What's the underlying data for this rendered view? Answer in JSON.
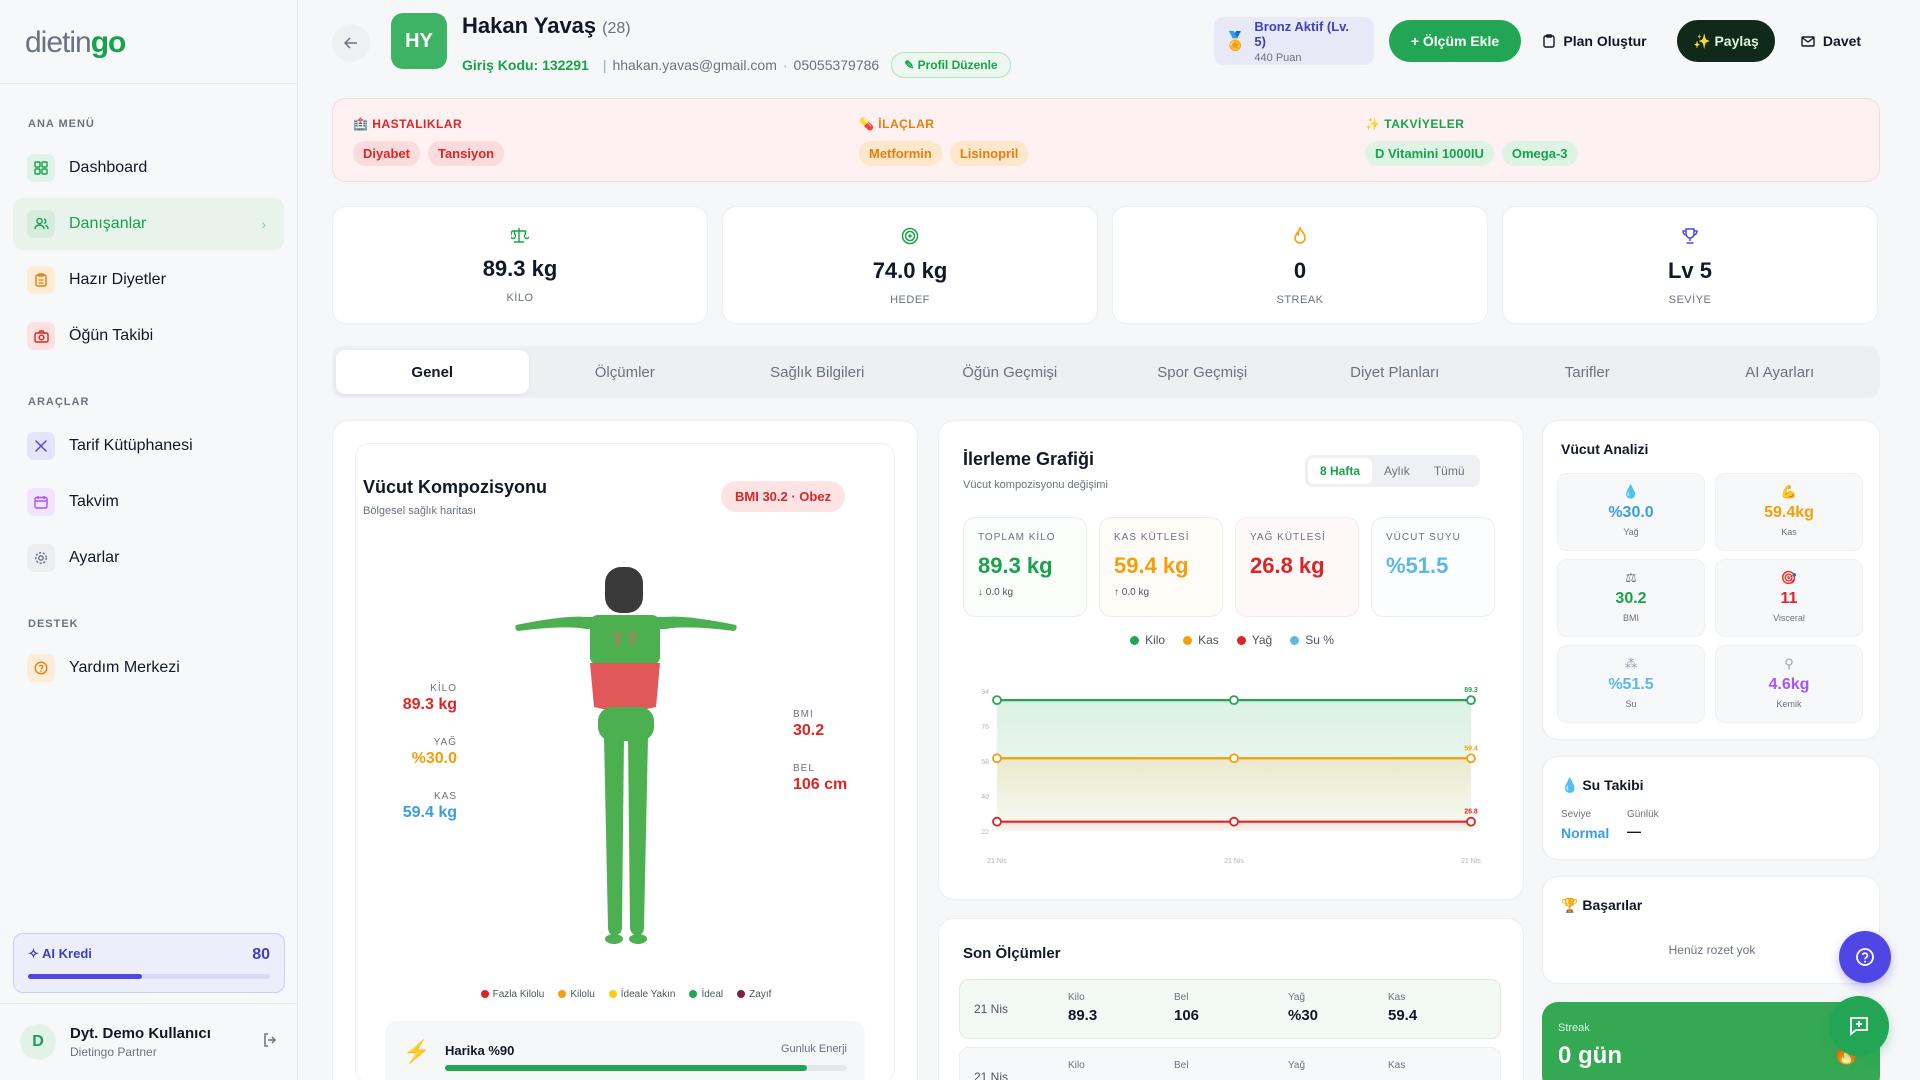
{
  "brand": {
    "part1": "dietin",
    "part2": "go"
  },
  "sidebar": {
    "sections": [
      {
        "title": "ANA MENÜ"
      },
      {
        "title": "ARAÇLAR"
      },
      {
        "title": "DESTEK"
      }
    ],
    "items": [
      {
        "label": "Dashboard",
        "icon": "grid-icon",
        "color": "#16a34a"
      },
      {
        "label": "Danışanlar",
        "icon": "users-icon",
        "color": "#16a34a"
      },
      {
        "label": "Hazır Diyetler",
        "icon": "clipboard-icon",
        "color": "#ea7c0c"
      },
      {
        "label": "Öğün Takibi",
        "icon": "camera-icon",
        "color": "#dc2626"
      },
      {
        "label": "Tarif Kütüphanesi",
        "icon": "utensils-icon",
        "color": "#4f46e5"
      },
      {
        "label": "Takvim",
        "icon": "calendar-icon",
        "color": "#a855f7"
      },
      {
        "label": "Ayarlar",
        "icon": "gear-icon",
        "color": "#6b7280"
      },
      {
        "label": "Yardım Merkezi",
        "icon": "help-circle-icon",
        "color": "#ea7c0c"
      }
    ],
    "ai_credit": {
      "label": "AI Kredi",
      "value": "80",
      "fill_fraction": 0.47
    },
    "user": {
      "initial": "D",
      "name": "Dyt. Demo Kullanıcı",
      "role": "Dietingo Partner"
    }
  },
  "header": {
    "initials": "HY",
    "name": "Hakan Yavaş",
    "age": "(28)",
    "login_code": "Giriş Kodu: 132291",
    "email": "hhakan.yavas@gmail.com",
    "phone": "05055379786",
    "profile_edit": "✎ Profil Düzenle",
    "level_title": "Bronz Aktif (Lv. 5)",
    "level_points": "440 Puan",
    "btn_olcum": "+  Ölçüm Ekle",
    "btn_plan": "Plan Oluştur",
    "btn_paylas": "✨ Paylaş",
    "btn_davet": "Davet"
  },
  "health": {
    "diseases": {
      "title": "HASTALIKLAR",
      "items": [
        "Diyabet",
        "Tansiyon"
      ]
    },
    "drugs": {
      "title": "İLAÇLAR",
      "items": [
        "Metformin",
        "Lisinopril"
      ]
    },
    "supplements": {
      "title": "TAKVİYELER",
      "items": [
        "D Vitamini 1000IU",
        "Omega-3"
      ]
    }
  },
  "stats": [
    {
      "value": "89.3 kg",
      "label": "KİLO",
      "icon": "scale-icon",
      "color": "#16a34a"
    },
    {
      "value": "74.0 kg",
      "label": "HEDEF",
      "icon": "target-icon",
      "color": "#16a34a"
    },
    {
      "value": "0",
      "label": "STREAK",
      "icon": "flame-icon",
      "color": "#f59e0b"
    },
    {
      "value": "Lv 5",
      "label": "SEVİYE",
      "icon": "trophy-icon",
      "color": "#4f46e5"
    }
  ],
  "tabs": [
    "Genel",
    "Ölçümler",
    "Sağlık Bilgileri",
    "Öğün Geçmişi",
    "Spor Geçmişi",
    "Diyet Planları",
    "Tarifler",
    "AI Ayarları"
  ],
  "body_comp": {
    "title": "Vücut Kompozisyonu",
    "subtitle": "Bölgesel sağlık haritası",
    "bmi_badge": "BMI 30.2 · Obez",
    "left": [
      {
        "k": "KİLO",
        "v": "89.3 kg",
        "color": "#dc2626"
      },
      {
        "k": "YAĞ",
        "v": "%30.0",
        "color": "#f59e0b"
      },
      {
        "k": "KAS",
        "v": "59.4 kg",
        "color": "#3b9ede"
      }
    ],
    "right": [
      {
        "k": "BMI",
        "v": "30.2",
        "color": "#dc2626"
      },
      {
        "k": "BEL",
        "v": "106 cm",
        "color": "#dc2626"
      }
    ],
    "legend": [
      {
        "label": "Fazla Kilolu",
        "color": "#dc2626"
      },
      {
        "label": "Kilolu",
        "color": "#f59e0b"
      },
      {
        "label": "İdeale Yakın",
        "color": "#facc15"
      },
      {
        "label": "İdeal",
        "color": "#22a554"
      },
      {
        "label": "Zayıf",
        "color": "#7f1d4a"
      }
    ],
    "energy": {
      "label": "Harika %90",
      "right": "Gunluk Enerji",
      "fill_fraction": 0.9
    }
  },
  "progress": {
    "title": "İlerleme Grafiği",
    "subtitle": "Vücut kompozisyonu değişimi",
    "ranges": [
      "8 Hafta",
      "Aylık",
      "Tümü"
    ],
    "cards": [
      {
        "k": "TOPLAM KİLO",
        "v": "89.3 kg",
        "d": "↓ 0.0 kg",
        "color": "#16a34a",
        "bg": "#fbfdfb"
      },
      {
        "k": "KAS KÜTLESİ",
        "v": "59.4 kg",
        "d": "↑ 0.0 kg",
        "color": "#f59e0b",
        "bg": "#fffcf7"
      },
      {
        "k": "YAĞ KÜTLESİ",
        "v": "26.8 kg",
        "d": "",
        "color": "#dc2626",
        "bg": "#fff8f8"
      },
      {
        "k": "VÜCUT SUYU",
        "v": "%51.5",
        "d": "",
        "color": "#5cb8e6",
        "bg": "#fbfdff"
      }
    ],
    "legend": [
      {
        "label": "Kilo",
        "color": "#22a554"
      },
      {
        "label": "Kas",
        "color": "#f59e0b"
      },
      {
        "label": "Yağ",
        "color": "#dc2626"
      },
      {
        "label": "Su %",
        "color": "#5cb8e6"
      }
    ]
  },
  "chart_data": {
    "type": "line",
    "x": [
      "21 Nis",
      "21 Nis",
      "21 Nis"
    ],
    "y_ticks": [
      "94",
      "76",
      "58",
      "40",
      "22"
    ],
    "ylim": [
      22,
      94
    ],
    "series": [
      {
        "name": "Kilo",
        "values": [
          89.3,
          89.3,
          89.3
        ],
        "color": "#22a554",
        "end_label": "89.3"
      },
      {
        "name": "Kas",
        "values": [
          59.4,
          59.4,
          59.4
        ],
        "color": "#f59e0b",
        "end_label": "59.4"
      },
      {
        "name": "Yağ",
        "values": [
          26.8,
          26.8,
          26.8
        ],
        "color": "#dc2626",
        "end_label": "26.8"
      }
    ]
  },
  "recent": {
    "title": "Son Ölçümler",
    "rows": [
      {
        "date": "21 Nis",
        "kilo": "89.3",
        "bel": "106",
        "yag": "%30",
        "kas": "59.4"
      },
      {
        "date": "21 Nis",
        "kilo": "",
        "bel": "",
        "yag": "",
        "kas": ""
      }
    ],
    "cols": {
      "kilo": "Kilo",
      "bel": "Bel",
      "yag": "Yağ",
      "kas": "Kas"
    }
  },
  "analysis": {
    "title": "Vücut Analizi",
    "cells": [
      {
        "v": "%30.0",
        "k": "Yağ",
        "icon": "drop-icon",
        "color": "#3b9ede"
      },
      {
        "v": "59.4kg",
        "k": "Kas",
        "icon": "muscle-icon",
        "color": "#f59e0b"
      },
      {
        "v": "30.2",
        "k": "BMI",
        "icon": "balance-icon",
        "color": "#16a34a"
      },
      {
        "v": "11",
        "k": "Visceral",
        "icon": "target-icon",
        "color": "#dc2626"
      },
      {
        "v": "%51.5",
        "k": "Su",
        "icon": "drops-icon",
        "color": "#5cb8e6"
      },
      {
        "v": "4.6kg",
        "k": "Kemik",
        "icon": "bone-icon",
        "color": "#a855f7"
      }
    ]
  },
  "water": {
    "title": "Su Takibi",
    "k1": "Seviye",
    "k2": "Günlük",
    "v1": "Normal",
    "v2": "—"
  },
  "achievements": {
    "title": "Başarılar",
    "empty": "Henüz rozet yok"
  },
  "streak": {
    "label": "Streak",
    "value": "0 gün"
  }
}
